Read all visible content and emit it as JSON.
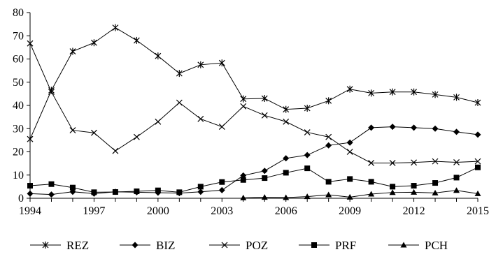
{
  "chart_data": {
    "type": "line",
    "title": "",
    "xlabel": "",
    "ylabel": "",
    "ylim": [
      0,
      80
    ],
    "y_ticks": [
      0,
      10,
      20,
      30,
      40,
      50,
      60,
      70,
      80
    ],
    "xlim": [
      1994,
      2015
    ],
    "x_tick_labels": [
      "1994",
      "1997",
      "2000",
      "2003",
      "2006",
      "2009",
      "2012",
      "2015"
    ],
    "grid": false,
    "legend_position": "bottom",
    "x": [
      1994,
      1995,
      1996,
      1997,
      1998,
      1999,
      2000,
      2001,
      2002,
      2003,
      2004,
      2005,
      2006,
      2007,
      2008,
      2009,
      2010,
      2011,
      2012,
      2013,
      2014,
      2015
    ],
    "series": [
      {
        "name": "REZ",
        "marker": "asterisk",
        "values": [
          25.5,
          46.5,
          63.3,
          67.0,
          73.5,
          68.0,
          61.3,
          53.8,
          57.5,
          58.3,
          42.8,
          43.0,
          38.3,
          38.8,
          42.0,
          47.0,
          45.3,
          45.8,
          45.8,
          44.7,
          43.5,
          41.2
        ]
      },
      {
        "name": "BIZ",
        "marker": "diamond",
        "values": [
          2.0,
          1.6,
          2.8,
          2.0,
          2.8,
          2.6,
          2.4,
          2.2,
          2.8,
          3.5,
          9.8,
          11.8,
          17.2,
          18.6,
          22.8,
          24.0,
          30.4,
          30.8,
          30.4,
          30.0,
          28.6,
          27.4
        ]
      },
      {
        "name": "POZ",
        "marker": "x",
        "values": [
          66.7,
          45.8,
          29.3,
          28.2,
          20.4,
          26.4,
          33.0,
          41.2,
          34.2,
          30.8,
          39.6,
          35.7,
          33.0,
          28.4,
          26.4,
          20.0,
          15.2,
          15.2,
          15.4,
          15.9,
          15.5,
          15.9
        ]
      },
      {
        "name": "PRF",
        "marker": "square",
        "values": [
          5.4,
          6.1,
          4.6,
          2.6,
          2.7,
          3.0,
          3.4,
          2.6,
          5.0,
          7.0,
          7.9,
          8.7,
          11.0,
          12.9,
          7.1,
          8.3,
          7.1,
          5.0,
          5.4,
          6.6,
          8.9,
          13.3
        ]
      },
      {
        "name": "PCH",
        "marker": "triangle",
        "values": [
          null,
          null,
          null,
          null,
          null,
          null,
          null,
          null,
          null,
          null,
          0.2,
          0.4,
          0.3,
          0.7,
          1.5,
          0.5,
          1.8,
          2.5,
          2.6,
          2.3,
          3.4,
          2.0
        ]
      }
    ]
  }
}
